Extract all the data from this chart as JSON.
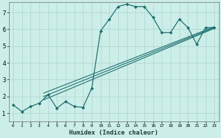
{
  "xlabel": "Humidex (Indice chaleur)",
  "bg_color": "#cceee8",
  "line_color": "#1a6b6b",
  "grid_color": "#aad4ce",
  "xlim": [
    -0.5,
    23.5
  ],
  "ylim": [
    0.5,
    7.6
  ],
  "xticks": [
    0,
    1,
    2,
    3,
    4,
    5,
    6,
    7,
    8,
    9,
    10,
    11,
    12,
    13,
    14,
    15,
    16,
    17,
    18,
    19,
    20,
    21,
    22,
    23
  ],
  "yticks": [
    1,
    2,
    3,
    4,
    5,
    6,
    7
  ],
  "series1_x": [
    0,
    1,
    2,
    3,
    4,
    5,
    6,
    7,
    8,
    9,
    10,
    11,
    12,
    13,
    14,
    15,
    16,
    17,
    18,
    19,
    20,
    21,
    22,
    23
  ],
  "series1_y": [
    1.5,
    1.1,
    1.4,
    1.6,
    2.1,
    1.3,
    1.7,
    1.4,
    1.35,
    2.5,
    5.9,
    6.6,
    7.35,
    7.5,
    7.35,
    7.35,
    6.7,
    5.8,
    5.8,
    6.6,
    6.1,
    5.1,
    6.1,
    6.1
  ],
  "line2_x": [
    3.5,
    23
  ],
  "line2_y": [
    1.8,
    6.05
  ],
  "line3_x": [
    3.5,
    23
  ],
  "line3_y": [
    2.0,
    6.1
  ],
  "line4_x": [
    3.5,
    23
  ],
  "line4_y": [
    2.2,
    6.15
  ],
  "xlabel_fontsize": 6.5,
  "tick_fontsize_x": 4.5,
  "tick_fontsize_y": 6.0
}
